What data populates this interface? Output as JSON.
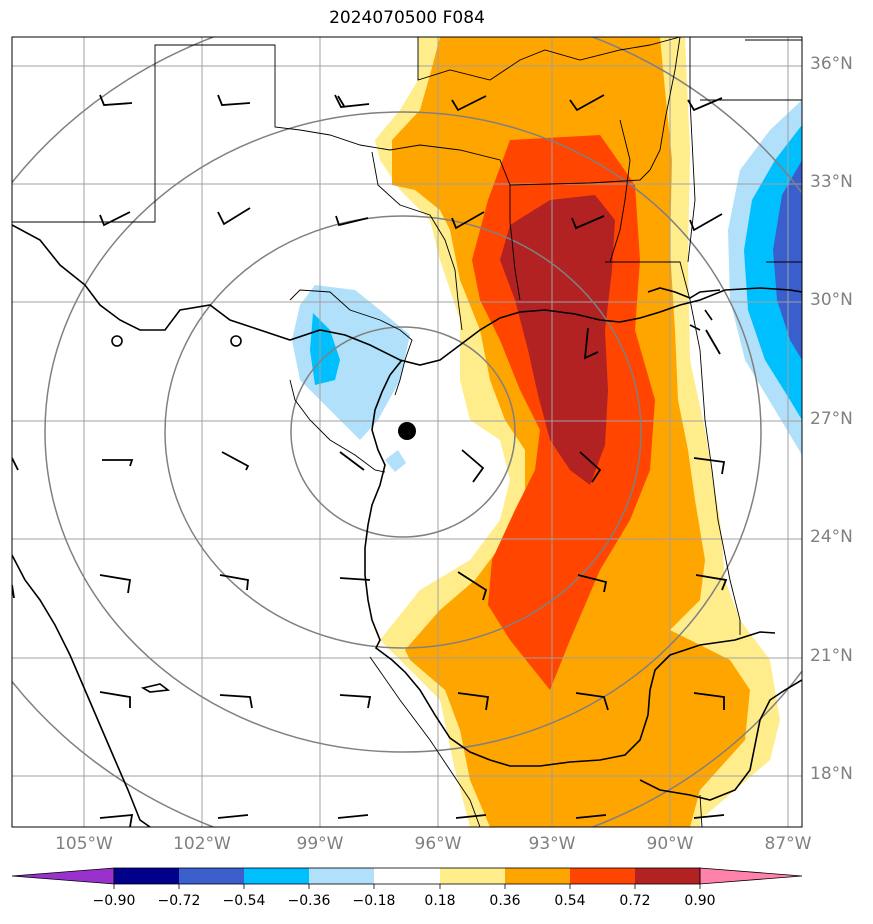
{
  "title": "2024070500 F084",
  "lat_labels": [
    "36°N",
    "33°N",
    "30°N",
    "27°N",
    "24°N",
    "21°N",
    "18°N"
  ],
  "lon_labels": [
    "105°W",
    "102°W",
    "99°W",
    "96°W",
    "93°W",
    "90°W",
    "87°W"
  ],
  "colorbar": {
    "labels": [
      "−0.90",
      "−0.72",
      "−0.54",
      "−0.36",
      "−0.18",
      "0.18",
      "0.36",
      "0.54",
      "0.72",
      "0.90"
    ],
    "colors": [
      "#9932cc",
      "#00008b",
      "#3a5fcd",
      "#00bfff",
      "#b0e0fa",
      "#ffffff",
      "#ffec8b",
      "#ffa500",
      "#ff4500",
      "#b22222",
      "#ff82ab"
    ],
    "extend": "both"
  },
  "map": {
    "extent_lon": [
      -106.75,
      -86.75
    ],
    "extent_lat": [
      16.75,
      36.75
    ],
    "center_marker": {
      "lon": -96.7,
      "lat": 26.7,
      "color": "#000000"
    },
    "range_rings": 4,
    "field_colors": {
      "light_yellow": "#ffec8b",
      "orange": "#ffa500",
      "red_orange": "#ff4500",
      "dark_red": "#b22222",
      "light_blue": "#b0e0fa",
      "sky_blue": "#00bfff",
      "royal_blue": "#3a5fcd"
    }
  }
}
